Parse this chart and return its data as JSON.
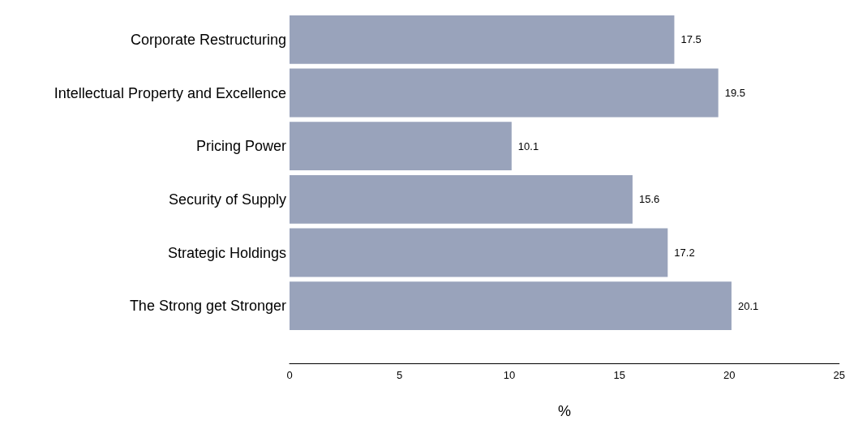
{
  "chart_data": {
    "type": "bar",
    "orientation": "horizontal",
    "xlabel": "%",
    "categories": [
      "Corporate Restructuring",
      "Intellectual Property and Excellence",
      "Pricing Power",
      "Security of Supply",
      "Strategic Holdings",
      "The Strong get Stronger"
    ],
    "values": [
      17.5,
      19.5,
      10.1,
      15.6,
      17.2,
      20.1
    ],
    "color": "#99a3bb",
    "xlim": [
      0,
      25
    ],
    "xticks": [
      0,
      5,
      10,
      15,
      20,
      25
    ],
    "grid": false,
    "data_labels": true
  }
}
